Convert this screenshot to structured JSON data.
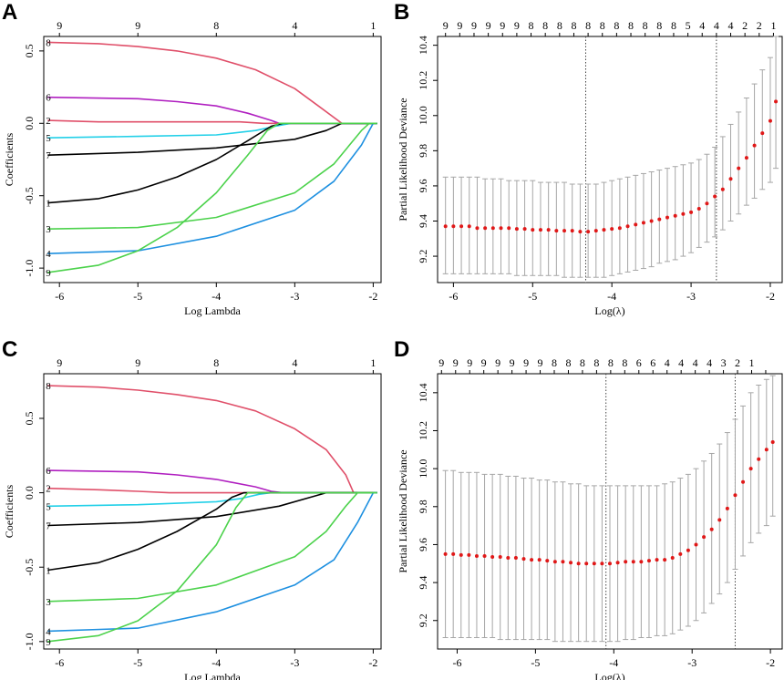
{
  "panel_labels": [
    "A",
    "B",
    "C",
    "D"
  ],
  "chart_data": [
    {
      "type": "line",
      "panel": "A",
      "title": "",
      "xlabel": "Log Lambda",
      "ylabel": "Coefficients",
      "xlim": [
        -6.2,
        -1.9
      ],
      "ylim": [
        -1.1,
        0.6
      ],
      "x_ticks": [
        -6,
        -5,
        -4,
        -3,
        -2
      ],
      "y_ticks": [
        -1.0,
        -0.5,
        0.0,
        0.5
      ],
      "y_tick_labels": [
        "-1.0",
        "-0.5",
        "0.0",
        "0.5"
      ],
      "top_ticks": {
        "x": [
          -6.0,
          -5.0,
          -4.0,
          -3.0,
          -2.0
        ],
        "labels": [
          "9",
          "9",
          "8",
          "4",
          "1"
        ]
      },
      "series": [
        {
          "name": "8",
          "color": "#e0506a",
          "x": [
            -6.15,
            -5.5,
            -5.0,
            -4.5,
            -4.0,
            -3.5,
            -3.0,
            -2.7,
            -2.4
          ],
          "values": [
            0.56,
            0.55,
            0.53,
            0.5,
            0.45,
            0.37,
            0.24,
            0.12,
            0.0
          ]
        },
        {
          "name": "6",
          "color": "#b01fc0",
          "x": [
            -6.15,
            -5.0,
            -4.5,
            -4.0,
            -3.6,
            -3.3,
            -3.2
          ],
          "values": [
            0.18,
            0.17,
            0.15,
            0.12,
            0.07,
            0.02,
            0.0
          ]
        },
        {
          "name": "2",
          "color": "#e0506a",
          "x": [
            -6.15,
            -5.5,
            -4.5,
            -3.7,
            -3.4,
            -3.2
          ],
          "values": [
            0.02,
            0.01,
            0.01,
            0.01,
            0.0,
            0.0
          ]
        },
        {
          "name": "5",
          "color": "#22d0e8",
          "x": [
            -6.15,
            -5.0,
            -4.0,
            -3.5,
            -3.25,
            -3.05
          ],
          "values": [
            -0.1,
            -0.09,
            -0.08,
            -0.05,
            -0.02,
            0.0
          ]
        },
        {
          "name": "7",
          "color": "#000000",
          "x": [
            -6.15,
            -5.0,
            -4.0,
            -3.0,
            -2.6,
            -2.4
          ],
          "values": [
            -0.22,
            -0.2,
            -0.17,
            -0.11,
            -0.05,
            0.0
          ]
        },
        {
          "name": "1",
          "color": "#000000",
          "x": [
            -6.15,
            -5.5,
            -5.0,
            -4.5,
            -4.0,
            -3.6,
            -3.3,
            -3.15
          ],
          "values": [
            -0.55,
            -0.52,
            -0.46,
            -0.37,
            -0.25,
            -0.12,
            -0.02,
            0.0
          ]
        },
        {
          "name": "3",
          "color": "#4cd24c",
          "x": [
            -6.15,
            -5.0,
            -4.0,
            -3.0,
            -2.5,
            -2.15,
            -2.05
          ],
          "values": [
            -0.73,
            -0.72,
            -0.65,
            -0.48,
            -0.28,
            -0.05,
            0.0
          ]
        },
        {
          "name": "4",
          "color": "#1e90e0",
          "x": [
            -6.15,
            -5.0,
            -4.0,
            -3.0,
            -2.5,
            -2.15,
            -2.0
          ],
          "values": [
            -0.9,
            -0.88,
            -0.78,
            -0.6,
            -0.4,
            -0.15,
            0.0
          ]
        },
        {
          "name": "9",
          "color": "#4cd24c",
          "x": [
            -6.15,
            -5.5,
            -5.0,
            -4.5,
            -4.0,
            -3.6,
            -3.35,
            -3.2
          ],
          "values": [
            -1.03,
            -0.98,
            -0.88,
            -0.72,
            -0.48,
            -0.22,
            -0.05,
            0.0
          ]
        }
      ]
    },
    {
      "type": "scatter",
      "panel": "B",
      "title": "",
      "xlabel": "Log(λ)",
      "ylabel": "Partial Likelihood Deviance",
      "xlim": [
        -6.2,
        -1.85
      ],
      "ylim": [
        9.05,
        10.45
      ],
      "x_ticks": [
        -6,
        -5,
        -4,
        -3,
        -2
      ],
      "y_ticks": [
        9.2,
        9.4,
        9.6,
        9.8,
        10.0,
        10.2,
        10.4
      ],
      "y_tick_labels": [
        "9.2",
        "9.4",
        "9.6",
        "9.8",
        "10.0",
        "10.2",
        "10.4"
      ],
      "top_ticks": {
        "x": [
          -6.1,
          -5.92,
          -5.74,
          -5.56,
          -5.38,
          -5.2,
          -5.02,
          -4.84,
          -4.66,
          -4.48,
          -4.3,
          -4.12,
          -3.94,
          -3.76,
          -3.58,
          -3.4,
          -3.22,
          -3.04,
          -2.86,
          -2.68,
          -2.5,
          -2.32,
          -2.14,
          -1.96
        ],
        "labels": [
          "9",
          "9",
          "9",
          "9",
          "9",
          "9",
          "8",
          "8",
          "8",
          "8",
          "8",
          "8",
          "8",
          "8",
          "8",
          "8",
          "8",
          "5",
          "4",
          "4",
          "4",
          "2",
          "2",
          "1"
        ]
      },
      "lambda_min": -4.33,
      "lambda_1se": -2.68,
      "points": {
        "x": [
          -6.1,
          -6.0,
          -5.9,
          -5.8,
          -5.7,
          -5.6,
          -5.5,
          -5.4,
          -5.3,
          -5.2,
          -5.1,
          -5.0,
          -4.9,
          -4.8,
          -4.7,
          -4.6,
          -4.5,
          -4.4,
          -4.3,
          -4.2,
          -4.1,
          -4.0,
          -3.9,
          -3.8,
          -3.7,
          -3.6,
          -3.5,
          -3.4,
          -3.3,
          -3.2,
          -3.1,
          -3.0,
          -2.9,
          -2.8,
          -2.7,
          -2.6,
          -2.5,
          -2.4,
          -2.3,
          -2.2,
          -2.1,
          -2.0,
          -1.93
        ],
        "mean": [
          9.37,
          9.37,
          9.37,
          9.37,
          9.36,
          9.36,
          9.36,
          9.36,
          9.36,
          9.355,
          9.355,
          9.35,
          9.35,
          9.35,
          9.345,
          9.345,
          9.345,
          9.34,
          9.34,
          9.345,
          9.35,
          9.355,
          9.36,
          9.37,
          9.38,
          9.39,
          9.4,
          9.41,
          9.42,
          9.43,
          9.44,
          9.45,
          9.47,
          9.5,
          9.54,
          9.58,
          9.64,
          9.7,
          9.76,
          9.83,
          9.9,
          9.97,
          10.08
        ],
        "lower": [
          9.1,
          9.1,
          9.1,
          9.1,
          9.1,
          9.1,
          9.1,
          9.1,
          9.1,
          9.09,
          9.09,
          9.09,
          9.09,
          9.09,
          9.09,
          9.08,
          9.08,
          9.08,
          9.08,
          9.08,
          9.08,
          9.09,
          9.1,
          9.11,
          9.12,
          9.13,
          9.14,
          9.16,
          9.17,
          9.18,
          9.2,
          9.22,
          9.25,
          9.28,
          9.31,
          9.35,
          9.4,
          9.44,
          9.49,
          9.53,
          9.58,
          9.62,
          9.7
        ],
        "upper": [
          9.65,
          9.65,
          9.65,
          9.65,
          9.65,
          9.64,
          9.64,
          9.64,
          9.63,
          9.63,
          9.63,
          9.63,
          9.62,
          9.62,
          9.62,
          9.62,
          9.61,
          9.61,
          9.61,
          9.61,
          9.62,
          9.63,
          9.64,
          9.65,
          9.66,
          9.67,
          9.68,
          9.69,
          9.7,
          9.71,
          9.72,
          9.73,
          9.75,
          9.78,
          9.82,
          9.88,
          9.95,
          10.02,
          10.1,
          10.18,
          10.26,
          10.33,
          10.45
        ]
      }
    },
    {
      "type": "line",
      "panel": "C",
      "title": "",
      "xlabel": "Log Lambda",
      "ylabel": "Coefficients",
      "xlim": [
        -6.2,
        -1.9
      ],
      "ylim": [
        -1.05,
        0.8
      ],
      "x_ticks": [
        -6,
        -5,
        -4,
        -3,
        -2
      ],
      "y_ticks": [
        -1.0,
        -0.5,
        0.0,
        0.5
      ],
      "y_tick_labels": [
        "-1.0",
        "-0.5",
        "0.0",
        "0.5"
      ],
      "top_ticks": {
        "x": [
          -6.0,
          -5.0,
          -4.0,
          -3.0,
          -2.0
        ],
        "labels": [
          "9",
          "9",
          "8",
          "4",
          "1"
        ]
      },
      "series": [
        {
          "name": "8",
          "color": "#e0506a",
          "x": [
            -6.15,
            -5.5,
            -5.0,
            -4.5,
            -4.0,
            -3.5,
            -3.0,
            -2.6,
            -2.35,
            -2.25
          ],
          "values": [
            0.72,
            0.71,
            0.69,
            0.66,
            0.62,
            0.55,
            0.43,
            0.29,
            0.12,
            0.0
          ]
        },
        {
          "name": "6",
          "color": "#b01fc0",
          "x": [
            -6.15,
            -5.0,
            -4.5,
            -4.0,
            -3.5,
            -3.3,
            -3.15
          ],
          "values": [
            0.15,
            0.14,
            0.12,
            0.09,
            0.04,
            0.01,
            0.0
          ]
        },
        {
          "name": "2",
          "color": "#e0506a",
          "x": [
            -6.15,
            -5.5,
            -5.0,
            -4.6,
            -4.0,
            -3.7,
            -3.6
          ],
          "values": [
            0.03,
            0.02,
            0.01,
            0.0,
            0.0,
            0.0,
            0.0
          ]
        },
        {
          "name": "5",
          "color": "#22d0e8",
          "x": [
            -6.15,
            -5.0,
            -4.0,
            -3.7,
            -3.45,
            -3.3
          ],
          "values": [
            -0.09,
            -0.08,
            -0.06,
            -0.04,
            -0.01,
            0.0
          ]
        },
        {
          "name": "7",
          "color": "#000000",
          "x": [
            -6.15,
            -5.0,
            -4.0,
            -3.2,
            -2.8,
            -2.6
          ],
          "values": [
            -0.22,
            -0.2,
            -0.16,
            -0.09,
            -0.03,
            0.0
          ]
        },
        {
          "name": "1",
          "color": "#000000",
          "x": [
            -6.15,
            -5.5,
            -5.0,
            -4.5,
            -4.0,
            -3.8,
            -3.65
          ],
          "values": [
            -0.52,
            -0.47,
            -0.38,
            -0.26,
            -0.11,
            -0.03,
            0.0
          ]
        },
        {
          "name": "3",
          "color": "#4cd24c",
          "x": [
            -6.15,
            -5.0,
            -4.0,
            -3.0,
            -2.6,
            -2.35,
            -2.2
          ],
          "values": [
            -0.73,
            -0.71,
            -0.62,
            -0.43,
            -0.26,
            -0.09,
            0.0
          ]
        },
        {
          "name": "4",
          "color": "#1e90e0",
          "x": [
            -6.15,
            -5.0,
            -4.0,
            -3.0,
            -2.5,
            -2.2,
            -2.0
          ],
          "values": [
            -0.93,
            -0.91,
            -0.8,
            -0.62,
            -0.45,
            -0.2,
            0.0
          ]
        },
        {
          "name": "9",
          "color": "#4cd24c",
          "x": [
            -6.15,
            -5.5,
            -5.0,
            -4.5,
            -4.0,
            -3.75,
            -3.6
          ],
          "values": [
            -1.0,
            -0.96,
            -0.86,
            -0.66,
            -0.35,
            -0.1,
            0.0
          ]
        }
      ]
    },
    {
      "type": "scatter",
      "panel": "D",
      "title": "",
      "xlabel": "Log(λ)",
      "ylabel": "Partial Likelihood Deviance",
      "xlim": [
        -6.25,
        -1.85
      ],
      "ylim": [
        9.05,
        10.5
      ],
      "x_ticks": [
        -6,
        -5,
        -4,
        -3,
        -2
      ],
      "y_ticks": [
        9.2,
        9.4,
        9.6,
        9.8,
        10.0,
        10.2,
        10.4
      ],
      "y_tick_labels": [
        "9.2",
        "9.4",
        "9.6",
        "9.8",
        "10.0",
        "10.2",
        "10.4"
      ],
      "top_ticks": {
        "x": [
          -6.2,
          -6.02,
          -5.84,
          -5.66,
          -5.48,
          -5.3,
          -5.12,
          -4.94,
          -4.76,
          -4.58,
          -4.4,
          -4.22,
          -4.04,
          -3.86,
          -3.68,
          -3.5,
          -3.32,
          -3.14,
          -2.96,
          -2.78,
          -2.6,
          -2.42,
          -2.24,
          -2.06
        ],
        "labels": [
          "9",
          "9",
          "9",
          "9",
          "9",
          "9",
          "9",
          "9",
          "8",
          "8",
          "8",
          "8",
          "8",
          "8",
          "6",
          "6",
          "4",
          "4",
          "4",
          "4",
          "3",
          "2",
          "1",
          ""
        ]
      },
      "lambda_min": -4.1,
      "lambda_1se": -2.45,
      "points": {
        "x": [
          -6.15,
          -6.05,
          -5.95,
          -5.85,
          -5.75,
          -5.65,
          -5.55,
          -5.45,
          -5.35,
          -5.25,
          -5.15,
          -5.05,
          -4.95,
          -4.85,
          -4.75,
          -4.65,
          -4.55,
          -4.45,
          -4.35,
          -4.25,
          -4.15,
          -4.05,
          -3.95,
          -3.85,
          -3.75,
          -3.65,
          -3.55,
          -3.45,
          -3.35,
          -3.25,
          -3.15,
          -3.05,
          -2.95,
          -2.85,
          -2.75,
          -2.65,
          -2.55,
          -2.45,
          -2.35,
          -2.25,
          -2.15,
          -2.05,
          -1.97
        ],
        "mean": [
          9.55,
          9.55,
          9.545,
          9.545,
          9.54,
          9.54,
          9.535,
          9.535,
          9.53,
          9.53,
          9.525,
          9.52,
          9.52,
          9.515,
          9.51,
          9.51,
          9.505,
          9.5,
          9.5,
          9.5,
          9.5,
          9.5,
          9.505,
          9.51,
          9.51,
          9.51,
          9.515,
          9.52,
          9.52,
          9.53,
          9.55,
          9.57,
          9.6,
          9.64,
          9.68,
          9.73,
          9.79,
          9.86,
          9.93,
          10.0,
          10.05,
          10.1,
          10.14
        ],
        "lower": [
          9.11,
          9.11,
          9.11,
          9.11,
          9.11,
          9.11,
          9.11,
          9.1,
          9.1,
          9.1,
          9.1,
          9.1,
          9.1,
          9.1,
          9.09,
          9.09,
          9.09,
          9.09,
          9.09,
          9.09,
          9.09,
          9.09,
          9.09,
          9.1,
          9.1,
          9.11,
          9.11,
          9.12,
          9.12,
          9.13,
          9.15,
          9.17,
          9.2,
          9.24,
          9.29,
          9.34,
          9.4,
          9.47,
          9.54,
          9.61,
          9.66,
          9.7,
          9.75
        ],
        "upper": [
          9.99,
          9.99,
          9.98,
          9.98,
          9.98,
          9.97,
          9.97,
          9.97,
          9.96,
          9.96,
          9.95,
          9.95,
          9.94,
          9.94,
          9.93,
          9.93,
          9.92,
          9.92,
          9.91,
          9.91,
          9.91,
          9.91,
          9.91,
          9.91,
          9.91,
          9.91,
          9.91,
          9.91,
          9.92,
          9.93,
          9.95,
          9.97,
          10.0,
          10.04,
          10.08,
          10.13,
          10.19,
          10.26,
          10.33,
          10.4,
          10.44,
          10.47,
          10.49
        ]
      }
    }
  ]
}
